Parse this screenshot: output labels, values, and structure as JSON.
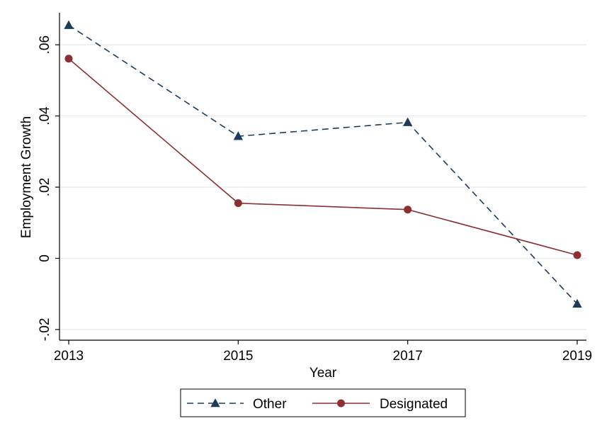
{
  "chart_data": {
    "type": "line",
    "xlabel": "Year",
    "ylabel": "Employment Growth",
    "x": [
      2013,
      2015,
      2017,
      2019
    ],
    "x_tick_labels": [
      "2013",
      "2015",
      "2017",
      "2019"
    ],
    "y_ticks": [
      -0.02,
      0,
      0.02,
      0.04,
      0.06
    ],
    "y_tick_labels": [
      "-.02",
      "0",
      ".02",
      ".04",
      ".06"
    ],
    "xlim": [
      2013,
      2019
    ],
    "ylim": [
      -0.023,
      0.069
    ],
    "grid": true,
    "legend_position": "bottom",
    "series": [
      {
        "name": "Other",
        "values": [
          0.0655,
          0.0343,
          0.0382,
          -0.0128
        ],
        "color": "#1f3b5a",
        "style": "dashed",
        "marker": "triangle"
      },
      {
        "name": "Designated",
        "values": [
          0.0561,
          0.0155,
          0.0137,
          0.0009
        ],
        "color": "#8b2f32",
        "style": "solid",
        "marker": "circle"
      }
    ]
  }
}
